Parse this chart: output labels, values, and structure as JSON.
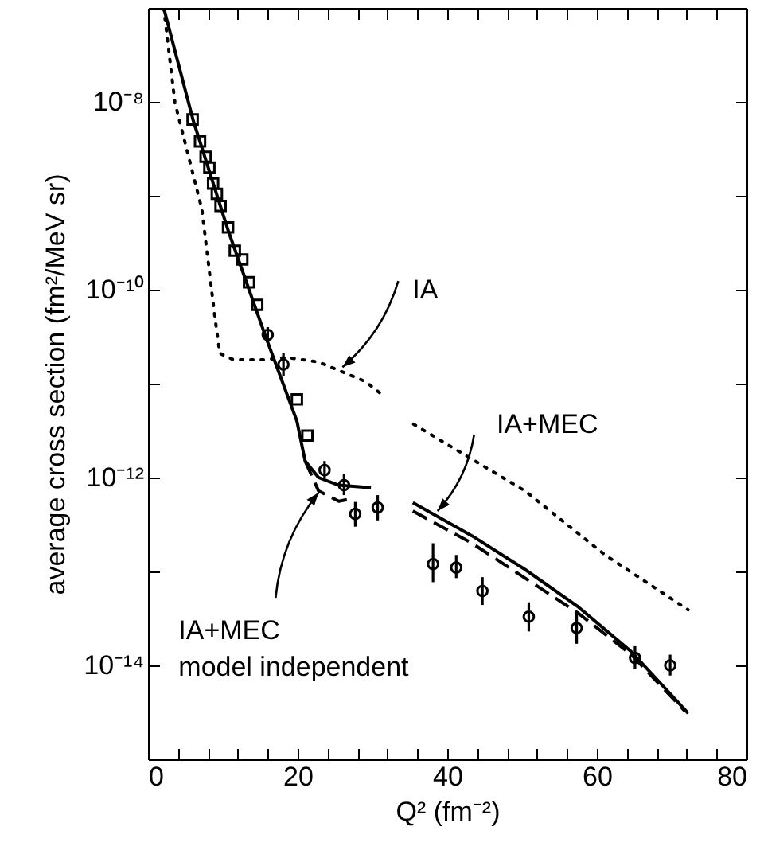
{
  "chart_data": {
    "type": "line",
    "xlabel": "Q² (fm⁻²)",
    "ylabel": "average cross section (fm²/MeV sr)",
    "log": "y",
    "xlim": [
      0,
      80
    ],
    "ylim": [
      1e-15,
      1e-07
    ],
    "xticks": [
      0,
      {
        "value": 4,
        "label": null
      },
      {
        "value": 8,
        "label": null
      },
      {
        "value": 12,
        "label": null
      },
      {
        "value": 16,
        "label": null
      },
      20,
      {
        "value": 24,
        "label": null
      },
      {
        "value": 28,
        "label": null
      },
      {
        "value": 32,
        "label": null
      },
      {
        "value": 36,
        "label": null
      },
      40,
      {
        "value": 44,
        "label": null
      },
      {
        "value": 48,
        "label": null
      },
      {
        "value": 52,
        "label": null
      },
      {
        "value": 56,
        "label": null
      },
      60,
      {
        "value": 64,
        "label": null
      },
      {
        "value": 68,
        "label": null
      },
      {
        "value": 72,
        "label": null
      },
      {
        "value": 76,
        "label": null
      },
      80
    ],
    "yticks": [
      {
        "value": 1e-15,
        "label": null
      },
      {
        "value": 1e-14,
        "label": "10⁻¹⁴"
      },
      {
        "value": 1e-13,
        "label": null
      },
      {
        "value": 1e-12,
        "label": "10⁻¹²"
      },
      {
        "value": 1e-11,
        "label": null
      },
      {
        "value": 1e-10,
        "label": "10⁻¹⁰"
      },
      {
        "value": 1e-09,
        "label": null
      },
      {
        "value": 1e-08,
        "label": "10⁻⁸"
      },
      {
        "value": 1e-07,
        "label": null
      }
    ],
    "annotations": [
      {
        "text": "IA",
        "x": 26.0,
        "y": 1.5e-11
      },
      {
        "text": "IA+MEC",
        "x": 38.7,
        "y": 4.4e-13
      },
      {
        "text": "IA+MEC\nmodel independent",
        "x": 22.8,
        "y": 6.9e-13
      }
    ],
    "series": [
      {
        "type": "scatter",
        "marker": "square",
        "color": "#000000",
        "x": [
          5.96,
          6.95,
          7.7,
          8.2,
          8.7,
          9.2,
          9.7,
          10.7,
          11.6,
          12.6,
          13.5,
          14.6,
          19.9,
          21.3
        ],
        "values": [
          6.5e-09,
          3.8e-09,
          2.6e-09,
          2e-09,
          1.35e-09,
          1.05e-09,
          7.8e-10,
          4.6e-10,
          2.6e-10,
          2.1e-10,
          1.2e-10,
          6.9e-11,
          6.8e-12,
          2.8e-12
        ]
      },
      {
        "type": "scatter",
        "marker": "circle",
        "color": "#000000",
        "x": [
          16.0,
          18.1,
          23.6,
          26.2,
          27.7,
          30.7,
          38.1,
          41.2,
          44.7,
          50.9,
          57.3,
          65.1,
          69.8
        ],
        "values": [
          3.3e-11,
          1.6e-11,
          1.2e-12,
          8.3e-13,
          4.1e-13,
          4.8e-13,
          1.2e-13,
          1.1e-13,
          6.2e-14,
          3.3e-14,
          2.5e-14,
          1.2e-14,
          1e-14
        ],
        "errors": [
          [
            2.8e-11,
            4e-11
          ],
          [
            1.2e-11,
            2.1e-11
          ],
          [
            9.8e-13,
            1.5e-12
          ],
          [
            6.5e-13,
            1.1e-12
          ],
          [
            3e-13,
            5.5e-13
          ],
          [
            3.5e-13,
            6.5e-13
          ],
          [
            7.7e-14,
            2e-13
          ],
          [
            8.5e-14,
            1.5e-13
          ],
          [
            4.4e-14,
            8.7e-14
          ],
          [
            2.3e-14,
            4.7e-14
          ],
          [
            1.7e-14,
            3.7e-14
          ],
          [
            9.1e-15,
            1.6e-14
          ],
          [
            7.8e-15,
            1.3e-14
          ]
        ]
      },
      {
        "line_style": "dotted",
        "color": "#000000",
        "x": [
          2.1,
          3.6,
          7.2,
          8.9,
          9.6,
          11.4,
          15.7,
          18.5,
          22.8,
          29.1,
          31.3,
          33.4,
          35.5,
          50.4,
          61.1,
          72.2
        ],
        "values": [
          1e-07,
          9.8e-09,
          7.2e-10,
          5.4e-11,
          2.1e-11,
          1.8e-11,
          1.8e-11,
          1.9e-11,
          1.7e-11,
          1.05e-11,
          7.6e-12,
          null,
          3.7e-12,
          7.2e-13,
          1.5e-13,
          3.9e-14
        ]
      },
      {
        "line_style": "solid",
        "color": "#000000",
        "x": [
          2.1,
          6.0,
          10.7,
          15.7,
          19.9,
          21.0,
          22.8,
          25.5,
          29.8,
          32.6,
          35.4,
          43.3,
          50.4,
          57.5,
          64.6,
          72.2
        ],
        "values": [
          1e-07,
          6.5e-09,
          4.3e-10,
          3.2e-11,
          4e-12,
          1.5e-12,
          1e-12,
          8.3e-13,
          7.8e-13,
          null,
          5.4e-13,
          2.4e-13,
          1.05e-13,
          4.2e-14,
          1.4e-14,
          3.1e-15
        ]
      },
      {
        "line_style": "dashed",
        "color": "#000000",
        "x": [
          21.0,
          22.8,
          25.5,
          27.4,
          31.4,
          35.4,
          43.3,
          50.4,
          57.5,
          64.6,
          71.7
        ],
        "values": [
          1.5e-12,
          7.2e-13,
          5.6e-13,
          6e-13,
          null,
          4.4e-13,
          2e-13,
          8.5e-14,
          3.6e-14,
          1.3e-14,
          3.3e-15
        ]
      }
    ]
  }
}
